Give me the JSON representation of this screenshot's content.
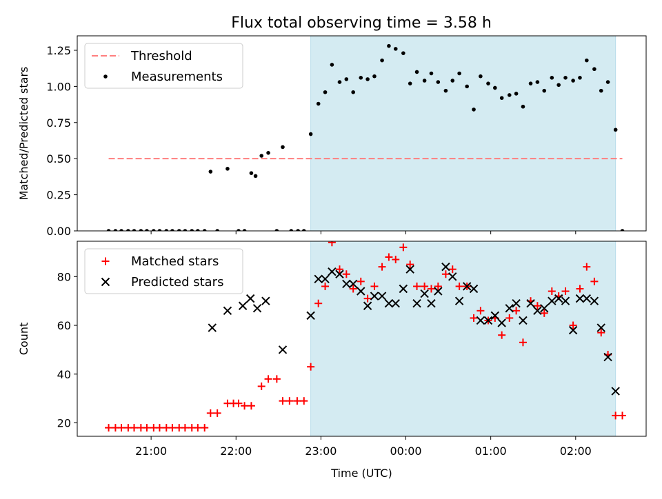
{
  "title": "Flux total observing time = 3.58 h",
  "colors": {
    "shade": "#d4ebf2",
    "threshold": "#ff7f7f",
    "measurement": "#000000",
    "matched": "#ff0000",
    "predicted": "#000000"
  },
  "chart_data": [
    {
      "type": "scatter",
      "ylabel": "Matched/Predicted stars",
      "ylim": [
        0,
        1.35
      ],
      "yticks": [
        0.0,
        0.25,
        0.5,
        0.75,
        1.0,
        1.25
      ],
      "ytick_labels": [
        "0.00",
        "0.25",
        "0.50",
        "0.75",
        "1.00",
        "1.25"
      ],
      "xlim_hours": [
        20.13,
        26.83
      ],
      "shaded_span_hours": [
        22.88,
        26.47
      ],
      "legend": {
        "position": "upper-left",
        "threshold_label": "Threshold",
        "measurements_label": "Measurements"
      },
      "threshold": {
        "value": 0.5,
        "x_hours": [
          20.5,
          26.55
        ]
      },
      "measurements": {
        "x_hours": [
          20.5,
          20.58,
          20.65,
          20.73,
          20.8,
          20.88,
          20.95,
          21.03,
          21.1,
          21.18,
          21.25,
          21.33,
          21.4,
          21.48,
          21.55,
          21.63,
          21.7,
          21.78,
          21.9,
          22.03,
          22.1,
          22.18,
          22.23,
          22.3,
          22.38,
          22.48,
          22.55,
          22.65,
          22.73,
          22.8,
          22.88,
          22.97,
          23.05,
          23.13,
          23.22,
          23.3,
          23.38,
          23.47,
          23.55,
          23.63,
          23.72,
          23.8,
          23.88,
          23.97,
          24.05,
          24.13,
          24.22,
          24.3,
          24.38,
          24.47,
          24.55,
          24.63,
          24.72,
          24.8,
          24.88,
          24.97,
          25.05,
          25.13,
          25.22,
          25.3,
          25.38,
          25.47,
          25.55,
          25.63,
          25.72,
          25.8,
          25.88,
          25.97,
          26.05,
          26.13,
          26.22,
          26.3,
          26.38,
          26.47,
          26.55
        ],
        "values": [
          0,
          0,
          0,
          0,
          0,
          0,
          0,
          0,
          0,
          0,
          0,
          0,
          0,
          0,
          0,
          0,
          0.41,
          0,
          0.43,
          0,
          0,
          0.4,
          0.38,
          0.52,
          0.54,
          0,
          0.58,
          0,
          0,
          0,
          0.67,
          0.88,
          0.96,
          1.15,
          1.03,
          1.05,
          0.96,
          1.06,
          1.05,
          1.07,
          1.18,
          1.28,
          1.26,
          1.23,
          1.02,
          1.1,
          1.04,
          1.09,
          1.03,
          0.97,
          1.04,
          1.09,
          1.0,
          0.84,
          1.07,
          1.02,
          0.99,
          0.92,
          0.94,
          0.95,
          0.86,
          1.02,
          1.03,
          0.97,
          1.06,
          1.01,
          1.06,
          1.04,
          1.06,
          1.18,
          1.12,
          0.97,
          1.03,
          0.7,
          0
        ]
      }
    },
    {
      "type": "scatter",
      "ylabel": "Count",
      "xlabel": "Time (UTC)",
      "ylim": [
        14.5,
        94.5
      ],
      "yticks": [
        20,
        40,
        60,
        80
      ],
      "ytick_labels": [
        "20",
        "40",
        "60",
        "80"
      ],
      "xlim_hours": [
        20.13,
        26.83
      ],
      "xticks_hours": [
        21,
        22,
        23,
        24,
        25,
        26
      ],
      "xtick_labels": [
        "21:00",
        "22:00",
        "23:00",
        "00:00",
        "01:00",
        "02:00"
      ],
      "shaded_span_hours": [
        22.88,
        26.47
      ],
      "legend": {
        "position": "upper-left",
        "matched_label": "Matched stars",
        "predicted_label": "Predicted stars"
      },
      "matched": {
        "x_hours": [
          20.5,
          20.58,
          20.65,
          20.73,
          20.8,
          20.88,
          20.95,
          21.03,
          21.1,
          21.18,
          21.25,
          21.33,
          21.4,
          21.48,
          21.55,
          21.63,
          21.7,
          21.78,
          21.9,
          21.97,
          22.03,
          22.1,
          22.18,
          22.3,
          22.38,
          22.48,
          22.55,
          22.63,
          22.72,
          22.8,
          22.88,
          22.97,
          23.05,
          23.13,
          23.22,
          23.3,
          23.38,
          23.47,
          23.55,
          23.63,
          23.72,
          23.8,
          23.88,
          23.97,
          24.05,
          24.13,
          24.22,
          24.3,
          24.38,
          24.47,
          24.55,
          24.63,
          24.72,
          24.8,
          24.88,
          24.97,
          25.05,
          25.13,
          25.22,
          25.3,
          25.38,
          25.47,
          25.55,
          25.63,
          25.72,
          25.8,
          25.88,
          25.97,
          26.05,
          26.13,
          26.22,
          26.3,
          26.38,
          26.47,
          26.55
        ],
        "values": [
          18,
          18,
          18,
          18,
          18,
          18,
          18,
          18,
          18,
          18,
          18,
          18,
          18,
          18,
          18,
          18,
          24,
          24,
          28,
          28,
          28,
          27,
          27,
          35,
          38,
          38,
          29,
          29,
          29,
          29,
          43,
          69,
          76,
          94,
          83,
          81,
          75,
          78,
          71,
          76,
          84,
          88,
          87,
          92,
          85,
          76,
          76,
          75,
          76,
          81,
          83,
          76,
          76,
          63,
          66,
          62,
          63,
          56,
          63,
          66,
          53,
          70,
          68,
          65,
          74,
          72,
          74,
          60,
          75,
          84,
          78,
          57,
          48,
          23,
          23
        ]
      },
      "predicted": {
        "x_hours": [
          21.72,
          21.9,
          22.08,
          22.17,
          22.25,
          22.35,
          22.55,
          22.88,
          22.97,
          23.05,
          23.13,
          23.22,
          23.3,
          23.38,
          23.47,
          23.55,
          23.63,
          23.72,
          23.8,
          23.88,
          23.97,
          24.05,
          24.13,
          24.22,
          24.3,
          24.38,
          24.47,
          24.55,
          24.63,
          24.72,
          24.8,
          24.88,
          24.97,
          25.05,
          25.13,
          25.22,
          25.3,
          25.38,
          25.47,
          25.55,
          25.63,
          25.72,
          25.8,
          25.88,
          25.97,
          26.05,
          26.13,
          26.22,
          26.3,
          26.38,
          26.47
        ],
        "values": [
          59,
          66,
          68,
          71,
          67,
          70,
          50,
          64,
          79,
          79,
          82,
          81,
          77,
          77,
          74,
          68,
          72,
          72,
          69,
          69,
          75,
          83,
          69,
          73,
          69,
          74,
          84,
          80,
          70,
          76,
          75,
          62,
          62,
          64,
          61,
          67,
          69,
          62,
          69,
          66,
          67,
          70,
          71,
          70,
          58,
          71,
          71,
          70,
          59,
          47,
          33
        ]
      }
    }
  ]
}
